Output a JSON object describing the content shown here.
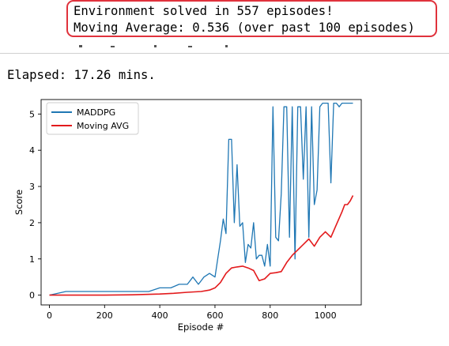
{
  "callout": {
    "line1": "Environment solved in 557 episodes!",
    "line2": "Moving Average: 0.536 (over past 100 episodes)",
    "border_color": "#e0323c"
  },
  "elapsed": "Elapsed: 17.26 mins.",
  "chart_data": {
    "type": "line",
    "title": "",
    "xlabel": "Episode #",
    "ylabel": "Score",
    "xlim": [
      -30,
      1130
    ],
    "ylim": [
      -0.27,
      5.4
    ],
    "xticks": [
      0,
      200,
      400,
      600,
      800,
      1000
    ],
    "yticks": [
      0,
      1,
      2,
      3,
      4,
      5
    ],
    "grid": false,
    "legend_position": "upper left",
    "series": [
      {
        "name": "MADDPG",
        "color": "#1f77b4",
        "x": [
          0,
          60,
          100,
          140,
          200,
          260,
          320,
          360,
          400,
          440,
          470,
          500,
          520,
          540,
          560,
          580,
          600,
          610,
          620,
          630,
          640,
          650,
          660,
          670,
          680,
          690,
          700,
          710,
          720,
          730,
          740,
          750,
          760,
          770,
          780,
          790,
          800,
          810,
          820,
          830,
          840,
          850,
          860,
          870,
          880,
          890,
          900,
          910,
          920,
          930,
          940,
          950,
          960,
          970,
          980,
          990,
          1000,
          1010,
          1020,
          1030,
          1040,
          1050,
          1060,
          1070,
          1080,
          1090,
          1100
        ],
        "y": [
          0.0,
          0.1,
          0.1,
          0.1,
          0.1,
          0.1,
          0.1,
          0.1,
          0.2,
          0.2,
          0.3,
          0.3,
          0.5,
          0.3,
          0.5,
          0.6,
          0.5,
          1.0,
          1.5,
          2.1,
          1.7,
          4.3,
          4.3,
          2.0,
          3.6,
          1.9,
          2.0,
          0.9,
          1.4,
          1.3,
          2.0,
          1.0,
          1.1,
          1.1,
          0.8,
          1.4,
          0.8,
          5.2,
          1.6,
          1.5,
          2.8,
          5.2,
          5.2,
          1.6,
          5.2,
          1.0,
          5.2,
          5.2,
          3.2,
          5.2,
          1.6,
          5.2,
          2.5,
          2.9,
          5.2,
          5.3,
          5.3,
          5.3,
          3.1,
          5.3,
          5.3,
          5.2,
          5.3,
          5.3,
          5.3,
          5.3,
          5.3
        ]
      },
      {
        "name": "Moving AVG",
        "color": "#e31a1c",
        "x": [
          0,
          100,
          200,
          300,
          400,
          450,
          500,
          550,
          580,
          600,
          620,
          640,
          660,
          680,
          700,
          720,
          740,
          760,
          780,
          800,
          820,
          840,
          860,
          880,
          900,
          920,
          940,
          960,
          980,
          1000,
          1020,
          1040,
          1060,
          1070,
          1080,
          1090,
          1100
        ],
        "y": [
          0.0,
          0.0,
          0.0,
          0.01,
          0.03,
          0.05,
          0.08,
          0.1,
          0.14,
          0.2,
          0.35,
          0.6,
          0.75,
          0.78,
          0.8,
          0.75,
          0.68,
          0.4,
          0.45,
          0.6,
          0.62,
          0.65,
          0.9,
          1.1,
          1.25,
          1.4,
          1.55,
          1.35,
          1.6,
          1.75,
          1.6,
          1.95,
          2.3,
          2.5,
          2.5,
          2.6,
          2.75
        ]
      }
    ]
  }
}
